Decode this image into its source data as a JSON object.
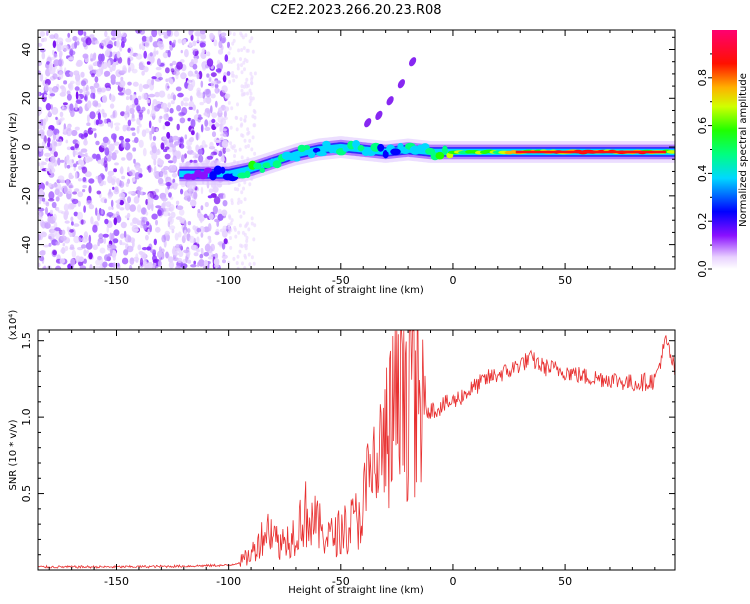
{
  "title": "C2E2.2023.266.20.23.R08",
  "chart_data": [
    {
      "type": "heatmap",
      "name": "spectrogram",
      "xlabel": "Height of straight line (km)",
      "ylabel": "Frequency (Hz)",
      "xlim": [
        -185,
        99
      ],
      "ylim": [
        -50,
        48
      ],
      "xticks": [
        -150,
        -100,
        -50,
        0,
        50
      ],
      "xtick_labels": [
        "-150",
        "-100",
        "-50",
        "0",
        "50"
      ],
      "yticks": [
        -40,
        -20,
        0,
        20,
        40
      ],
      "ytick_labels": [
        "-40",
        "-20",
        "0",
        "20",
        "40"
      ],
      "noise_region_x": [
        -185,
        -100
      ],
      "signal_track": {
        "x": [
          -120,
          -110,
          -100,
          -90,
          -80,
          -70,
          -60,
          -50,
          -40,
          -30,
          -20,
          -10,
          0,
          20,
          40,
          60,
          80,
          99
        ],
        "frequency": [
          -11,
          -11,
          -11,
          -9,
          -6,
          -3,
          -1,
          0,
          -1,
          -2,
          -1,
          -2,
          -2,
          -2,
          -2,
          -2,
          -2,
          -2
        ],
        "amplitude": [
          0.25,
          0.3,
          0.35,
          0.6,
          0.55,
          0.5,
          0.45,
          0.5,
          0.5,
          0.45,
          0.55,
          0.6,
          0.7,
          0.75,
          0.9,
          0.95,
          0.95,
          0.7
        ]
      },
      "harmonic_track": {
        "x": [
          -38,
          -33,
          -28,
          -23,
          -18
        ],
        "frequency": [
          10,
          13,
          19,
          26,
          35
        ]
      },
      "colorbar": {
        "label": "Normalized spectral amplitude",
        "range": [
          0,
          1.0
        ],
        "ticks": [
          0.0,
          0.2,
          0.4,
          0.6,
          0.8
        ],
        "tick_labels": [
          "0.0",
          "0.2",
          "0.4",
          "0.6",
          "0.8"
        ],
        "colors": [
          "#e0c0ff",
          "#7a00ff",
          "#0000ff",
          "#00e0ff",
          "#00ff40",
          "#80ff00",
          "#ffff00",
          "#ff8000",
          "#ff0000",
          "#ff0080"
        ]
      }
    },
    {
      "type": "line",
      "name": "snr",
      "xlabel": "Height of straight line (km)",
      "ylabel": "SNR (10 * v/v)",
      "yscale_label": "(x10⁴)",
      "xlim": [
        -185,
        99
      ],
      "ylim": [
        0,
        1.57
      ],
      "xticks": [
        -150,
        -100,
        -50,
        0,
        50
      ],
      "xtick_labels": [
        "-150",
        "-100",
        "-50",
        "0",
        "50"
      ],
      "yticks": [
        0.5,
        1.0,
        1.5
      ],
      "ytick_labels": [
        "0.5",
        "1.0",
        "1.5"
      ],
      "color": "#e83030",
      "series": {
        "x": [
          -185,
          -150,
          -120,
          -105,
          -100,
          -95,
          -90,
          -85,
          -82,
          -78,
          -72,
          -66,
          -62,
          -58,
          -54,
          -50,
          -46,
          -42,
          -38,
          -34,
          -30,
          -28,
          -26,
          -24,
          -22,
          -20,
          -18,
          -16,
          -12,
          -8,
          -4,
          0,
          5,
          10,
          15,
          20,
          25,
          30,
          35,
          40,
          50,
          60,
          70,
          80,
          90,
          95,
          99
        ],
        "y": [
          0.02,
          0.02,
          0.025,
          0.03,
          0.03,
          0.05,
          0.1,
          0.22,
          0.28,
          0.18,
          0.22,
          0.38,
          0.32,
          0.25,
          0.22,
          0.26,
          0.3,
          0.35,
          0.55,
          0.7,
          0.85,
          0.95,
          1.05,
          1.05,
          1.2,
          1.3,
          1.55,
          1.05,
          1.05,
          1.05,
          1.08,
          1.1,
          1.15,
          1.2,
          1.25,
          1.28,
          1.3,
          1.35,
          1.38,
          1.33,
          1.3,
          1.26,
          1.25,
          1.22,
          1.24,
          1.5,
          1.3
        ]
      }
    }
  ]
}
